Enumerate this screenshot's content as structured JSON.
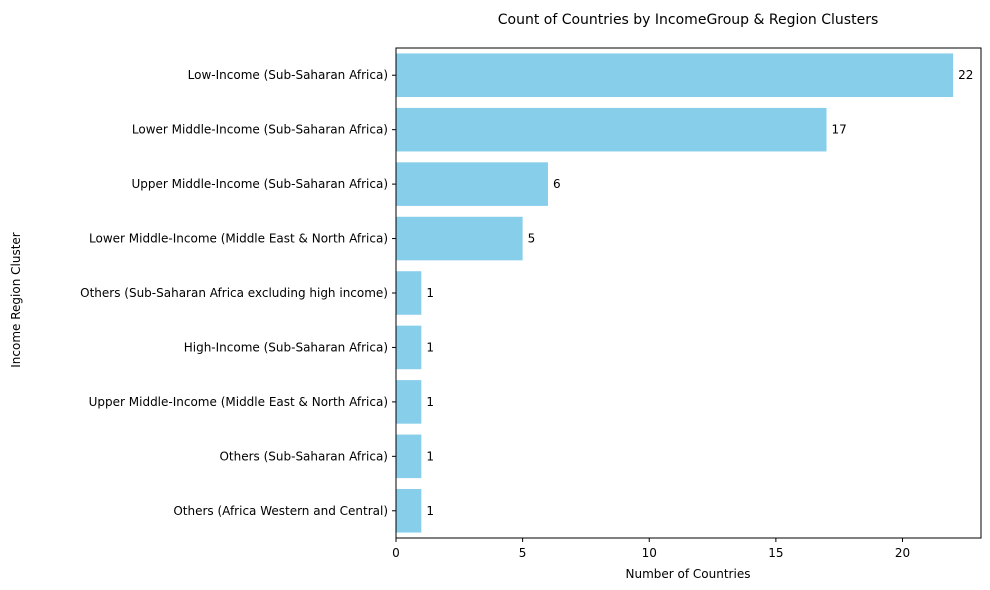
{
  "chart_data": {
    "type": "bar",
    "orientation": "horizontal",
    "title": "Count of Countries by IncomeGroup & Region Clusters",
    "xlabel": "Number of Countries",
    "ylabel": "Income Region Cluster",
    "categories": [
      "Low-Income (Sub-Saharan Africa)",
      "Lower Middle-Income (Sub-Saharan Africa)",
      "Upper Middle-Income (Sub-Saharan Africa)",
      "Lower Middle-Income (Middle East & North Africa)",
      "Others (Sub-Saharan Africa excluding high income)",
      "High-Income (Sub-Saharan Africa)",
      "Upper Middle-Income (Middle East & North Africa)",
      "Others (Sub-Saharan Africa)",
      "Others (Africa Western and Central)"
    ],
    "values": [
      22,
      17,
      6,
      5,
      1,
      1,
      1,
      1,
      1
    ],
    "xlim": [
      0,
      23.1
    ],
    "xticks": [
      0,
      5,
      10,
      15,
      20
    ],
    "bar_color": "#87ceeb",
    "grid": false,
    "legend": "none"
  }
}
